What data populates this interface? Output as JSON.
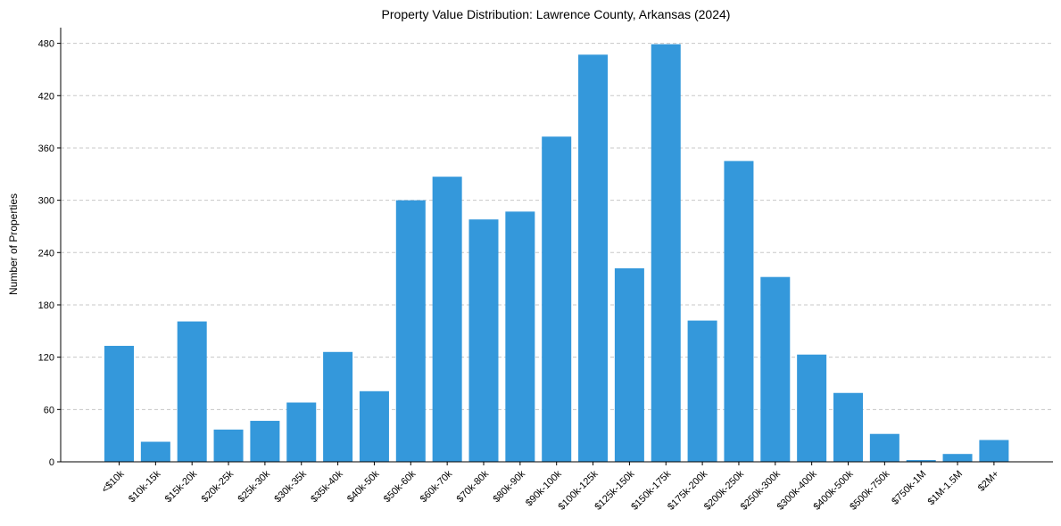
{
  "chart_data": {
    "type": "bar",
    "title": "Property Value Distribution: Lawrence County, Arkansas (2024)",
    "xlabel": "",
    "ylabel": "Number of Properties",
    "ylim": [
      0,
      498
    ],
    "yticks": [
      0,
      60,
      120,
      180,
      240,
      300,
      360,
      420,
      480
    ],
    "grid": "horizontal-dashed",
    "bar_color": "#3498db",
    "categories": [
      "<$10k",
      "$10k-15k",
      "$15k-20k",
      "$20k-25k",
      "$25k-30k",
      "$30k-35k",
      "$35k-40k",
      "$40k-50k",
      "$50k-60k",
      "$60k-70k",
      "$70k-80k",
      "$80k-90k",
      "$90k-100k",
      "$100k-125k",
      "$125k-150k",
      "$150k-175k",
      "$175k-200k",
      "$200k-250k",
      "$250k-300k",
      "$300k-400k",
      "$400k-500k",
      "$500k-750k",
      "$750k-1M",
      "$1M-1.5M",
      "$2M+"
    ],
    "values": [
      133,
      23,
      161,
      37,
      47,
      68,
      126,
      81,
      300,
      327,
      278,
      287,
      373,
      467,
      222,
      479,
      162,
      345,
      212,
      123,
      79,
      32,
      2,
      9,
      25
    ]
  }
}
